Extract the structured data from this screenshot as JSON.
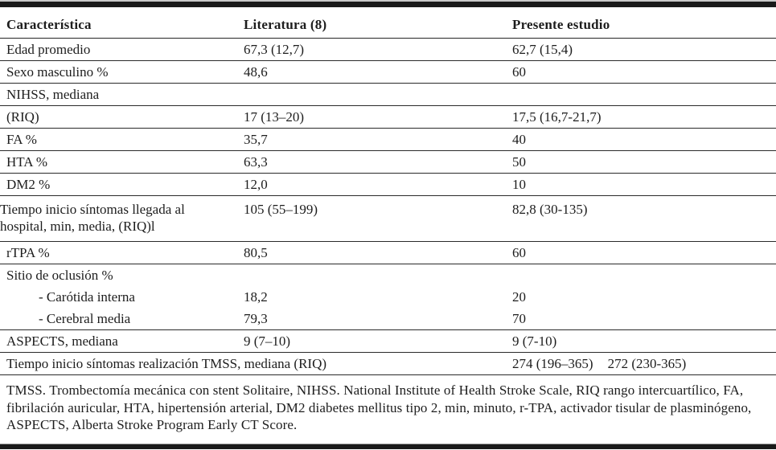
{
  "table": {
    "columns": [
      {
        "label": "Característica"
      },
      {
        "label": "Literatura (8)"
      },
      {
        "label": "Presente estudio"
      }
    ],
    "rows": [
      {
        "label": "Edad promedio",
        "literatura": "67,3 (12,7)",
        "presente": "62,7 (15,4)"
      },
      {
        "label": "Sexo masculino %",
        "literatura": "48,6",
        "presente": "60"
      },
      {
        "label": "NIHSS, mediana",
        "literatura": "",
        "presente": ""
      },
      {
        "label": "(RIQ)",
        "literatura": "17 (13–20)",
        "presente": "17,5 (16,7-21,7)"
      },
      {
        "label": "FA %",
        "literatura": "35,7",
        "presente": "40"
      },
      {
        "label": "HTA %",
        "literatura": "63,3",
        "presente": "50"
      },
      {
        "label": "DM2 %",
        "literatura": "12,0",
        "presente": "10"
      },
      {
        "label": "Tiempo inicio síntomas llegada al hospital, min, media, (RIQ)l",
        "literatura": "105 (55–199)",
        "presente": "82,8 (30-135)",
        "tall": true
      },
      {
        "label": "rTPA %",
        "literatura": "80,5",
        "presente": "60"
      },
      {
        "label": "Sitio de oclusión %",
        "literatura": "",
        "presente": "",
        "no_line": true
      },
      {
        "label": "- Carótida interna",
        "literatura": "18,2",
        "presente": "20",
        "indent": true,
        "no_line": true
      },
      {
        "label": "- Cerebral media",
        "literatura": "79,3",
        "presente": "70",
        "indent": true
      },
      {
        "label": "ASPECTS, mediana",
        "literatura": "9 (7–10)",
        "presente": "9 (7-10)"
      },
      {
        "label": "Tiempo inicio síntomas realización TMSS, mediana (RIQ)",
        "label_span": 2,
        "presente_values": [
          "274 (196–365)",
          "272 (230-365)"
        ]
      }
    ],
    "footnote": "TMSS. Trombectomía mecánica con stent Solitaire, NIHSS. National Institute of Health Stroke Scale, RIQ rango intercuartílico, FA, fibrilación auricular, HTA, hipertensión arterial, DM2 diabetes mellitus tipo 2, min, minuto, r-TPA, activador tisular de plasminógeno, ASPECTS, Alberta Stroke Program Early CT Score."
  },
  "colors": {
    "text": "#1d1d1d",
    "rule": "#2a2a2a",
    "thick_bar": "#1a1a1a"
  }
}
